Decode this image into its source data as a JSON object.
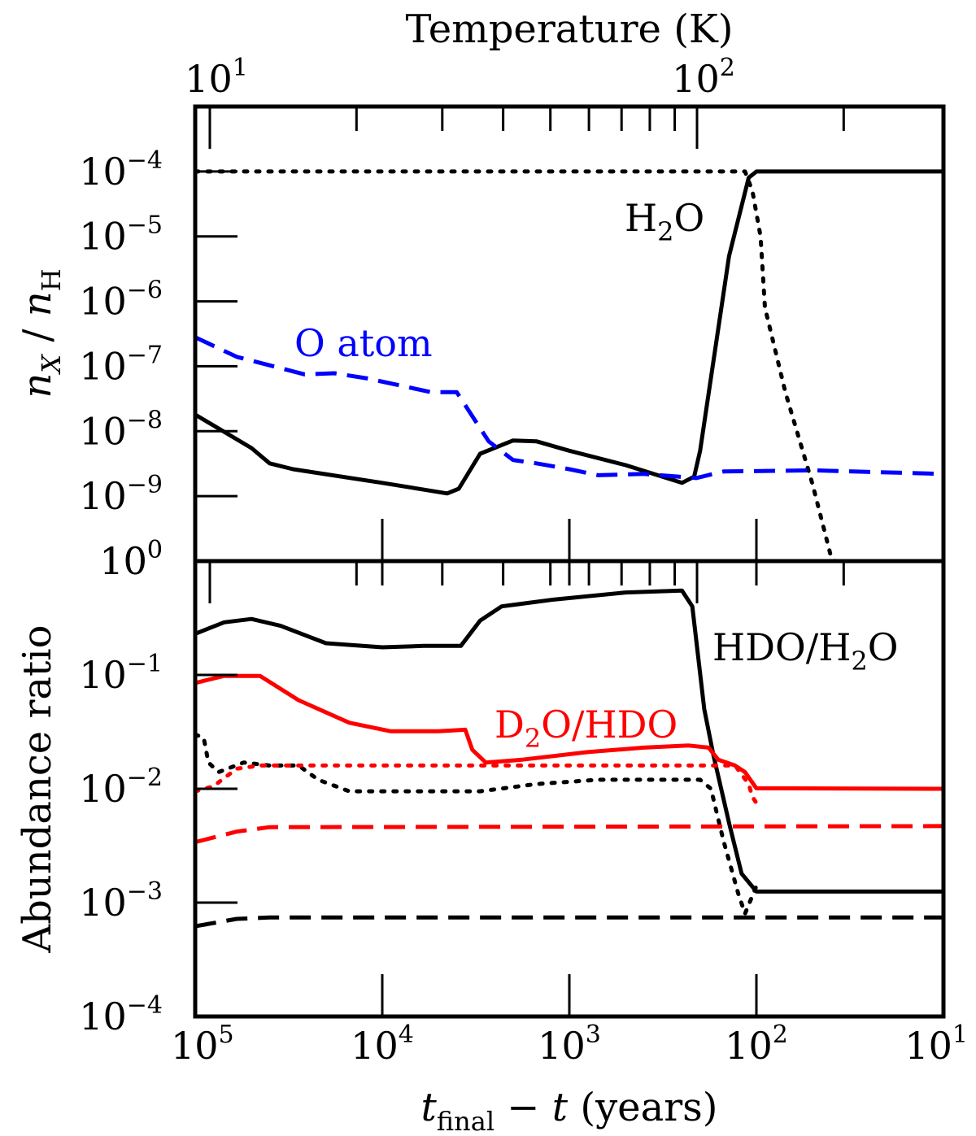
{
  "chart_data": [
    {
      "type": "line",
      "panel": "top",
      "title": "",
      "top_axis": {
        "label": "Temperature (K)",
        "scale": "log",
        "ticks": [
          {
            "base": "10",
            "exp": "1",
            "value": 10
          },
          {
            "base": "10",
            "exp": "2",
            "value": 100
          }
        ]
      },
      "ylabel": "n_X / n_H",
      "yscale": "log",
      "ylim": [
        1e-10,
        0.001
      ],
      "yticks": [
        {
          "base": "10",
          "exp": "−4",
          "value": 0.0001
        },
        {
          "base": "10",
          "exp": "−5",
          "value": 1e-05
        },
        {
          "base": "10",
          "exp": "−6",
          "value": 1e-06
        },
        {
          "base": "10",
          "exp": "−7",
          "value": 1e-07
        },
        {
          "base": "10",
          "exp": "−8",
          "value": 1e-08
        },
        {
          "base": "10",
          "exp": "−9",
          "value": 1e-09
        }
      ],
      "xscale": "log",
      "xlim": [
        100000,
        10
      ],
      "series": [
        {
          "name": "H2O gas",
          "color": "#000000",
          "style": "solid",
          "label": {
            "main": "H",
            "sub": "2",
            "tail": "O"
          },
          "points": [
            [
              100000,
              1.8e-08
            ],
            [
              50000,
              5.5e-09
            ],
            [
              40000,
              3.2e-09
            ],
            [
              30000,
              2.6e-09
            ],
            [
              10000,
              1.6e-09
            ],
            [
              4500,
              1.1e-09
            ],
            [
              3900,
              1.3e-09
            ],
            [
              3000,
              4.5e-09
            ],
            [
              2000,
              7.2e-09
            ],
            [
              1500,
              7e-09
            ],
            [
              1000,
              5e-09
            ],
            [
              500,
              3e-09
            ],
            [
              250,
              1.6e-09
            ],
            [
              215,
              2e-09
            ],
            [
              200,
              5e-09
            ],
            [
              140,
              5e-06
            ],
            [
              110,
              8e-05
            ],
            [
              100,
              0.0001
            ],
            [
              10,
              0.0001
            ]
          ]
        },
        {
          "name": "H2O ice",
          "color": "#000000",
          "style": "dotted",
          "points": [
            [
              100000,
              0.0001
            ],
            [
              115,
              0.0001
            ],
            [
              105,
              5e-05
            ],
            [
              95,
              1e-05
            ],
            [
              90,
              8e-07
            ],
            [
              70,
              4e-08
            ],
            [
              50,
              1.5e-09
            ],
            [
              40,
              1.2e-10
            ],
            [
              38,
              1e-10
            ]
          ]
        },
        {
          "name": "O atom",
          "color": "#0000ff",
          "style": "dashed",
          "label": {
            "main": "O atom"
          },
          "points": [
            [
              100000,
              2.8e-07
            ],
            [
              60000,
              1.4e-07
            ],
            [
              26000,
              7.5e-08
            ],
            [
              18000,
              7.8e-08
            ],
            [
              12000,
              6.5e-08
            ],
            [
              5500,
              4e-08
            ],
            [
              4000,
              4e-08
            ],
            [
              2700,
              7e-09
            ],
            [
              2000,
              3.6e-09
            ],
            [
              1500,
              3.2e-09
            ],
            [
              1000,
              2.6e-09
            ],
            [
              700,
              2.1e-09
            ],
            [
              400,
              2.2e-09
            ],
            [
              210,
              1.9e-09
            ],
            [
              150,
              2.4e-09
            ],
            [
              50,
              2.5e-09
            ],
            [
              10,
              2.2e-09
            ]
          ]
        }
      ]
    },
    {
      "type": "line",
      "panel": "bottom",
      "title": "",
      "xlabel": "t_final − t (years)",
      "xscale": "log",
      "xlim": [
        100000,
        10
      ],
      "xticks": [
        {
          "base": "10",
          "exp": "5",
          "value": 100000
        },
        {
          "base": "10",
          "exp": "4",
          "value": 10000
        },
        {
          "base": "10",
          "exp": "3",
          "value": 1000
        },
        {
          "base": "10",
          "exp": "2",
          "value": 100
        },
        {
          "base": "10",
          "exp": "1",
          "value": 10
        }
      ],
      "ylabel": "Abundance ratio",
      "yscale": "log",
      "ylim": [
        0.0001,
        1
      ],
      "yticks": [
        {
          "base": "10",
          "exp": "0",
          "value": 1
        },
        {
          "base": "10",
          "exp": "−1",
          "value": 0.1
        },
        {
          "base": "10",
          "exp": "−2",
          "value": 0.01
        },
        {
          "base": "10",
          "exp": "−3",
          "value": 0.001
        },
        {
          "base": "10",
          "exp": "−4",
          "value": 0.0001
        }
      ],
      "series": [
        {
          "name": "HDO/H2O gas",
          "color": "#000000",
          "style": "solid",
          "label": {
            "main": "HDO/H",
            "sub": "2",
            "tail": "O"
          },
          "points": [
            [
              100000,
              0.23
            ],
            [
              70000,
              0.29
            ],
            [
              50000,
              0.31
            ],
            [
              35000,
              0.27
            ],
            [
              20000,
              0.19
            ],
            [
              10000,
              0.175
            ],
            [
              6000,
              0.18
            ],
            [
              3800,
              0.18
            ],
            [
              3000,
              0.3
            ],
            [
              2300,
              0.4
            ],
            [
              1200,
              0.46
            ],
            [
              500,
              0.53
            ],
            [
              250,
              0.55
            ],
            [
              220,
              0.4
            ],
            [
              190,
              0.05
            ],
            [
              170,
              0.02
            ],
            [
              140,
              0.005
            ],
            [
              120,
              0.0018
            ],
            [
              100,
              0.00125
            ],
            [
              10,
              0.00125
            ]
          ]
        },
        {
          "name": "HDO/H2O ice",
          "color": "#000000",
          "style": "dotted",
          "points": [
            [
              100000,
              0.03
            ],
            [
              90000,
              0.028
            ],
            [
              85000,
              0.017
            ],
            [
              75000,
              0.014
            ],
            [
              55000,
              0.017
            ],
            [
              40000,
              0.016
            ],
            [
              28000,
              0.016
            ],
            [
              22000,
              0.012
            ],
            [
              15000,
              0.0095
            ],
            [
              5000,
              0.0095
            ],
            [
              3000,
              0.0095
            ],
            [
              1500,
              0.011
            ],
            [
              700,
              0.012
            ],
            [
              300,
              0.012
            ],
            [
              200,
              0.012
            ],
            [
              175,
              0.01
            ],
            [
              150,
              0.0035
            ],
            [
              125,
              0.0012
            ],
            [
              115,
              0.0008
            ],
            [
              100,
              0.0014
            ]
          ]
        },
        {
          "name": "HDO/H2O initial",
          "color": "#000000",
          "style": "dashed",
          "points": [
            [
              100000,
              0.00062
            ],
            [
              60000,
              0.00072
            ],
            [
              40000,
              0.00074
            ],
            [
              10,
              0.00074
            ]
          ]
        },
        {
          "name": "D2O/HDO gas",
          "color": "#ff0000",
          "style": "solid",
          "label": {
            "main": "D",
            "sub": "2",
            "tail": "O/HDO"
          },
          "points": [
            [
              100000,
              0.085
            ],
            [
              70000,
              0.098
            ],
            [
              45000,
              0.098
            ],
            [
              28000,
              0.06
            ],
            [
              15000,
              0.038
            ],
            [
              9000,
              0.032
            ],
            [
              5000,
              0.032
            ],
            [
              3600,
              0.033
            ],
            [
              3300,
              0.022
            ],
            [
              2800,
              0.017
            ],
            [
              1800,
              0.018
            ],
            [
              800,
              0.021
            ],
            [
              400,
              0.023
            ],
            [
              230,
              0.024
            ],
            [
              180,
              0.023
            ],
            [
              160,
              0.018
            ],
            [
              130,
              0.016
            ],
            [
              115,
              0.014
            ],
            [
              100,
              0.0101
            ],
            [
              10,
              0.01
            ]
          ]
        },
        {
          "name": "D2O/HDO ice",
          "color": "#ff0000",
          "style": "dotted",
          "points": [
            [
              100000,
              0.0095
            ],
            [
              80000,
              0.0105
            ],
            [
              60000,
              0.015
            ],
            [
              45000,
              0.016
            ],
            [
              130,
              0.016
            ],
            [
              110,
              0.011
            ],
            [
              105,
              0.0085
            ],
            [
              100,
              0.0075
            ]
          ]
        },
        {
          "name": "D2O/HDO initial",
          "color": "#ff0000",
          "style": "dashed",
          "points": [
            [
              100000,
              0.0034
            ],
            [
              60000,
              0.0042
            ],
            [
              40000,
              0.0046
            ],
            [
              10,
              0.0047
            ]
          ]
        }
      ]
    }
  ]
}
